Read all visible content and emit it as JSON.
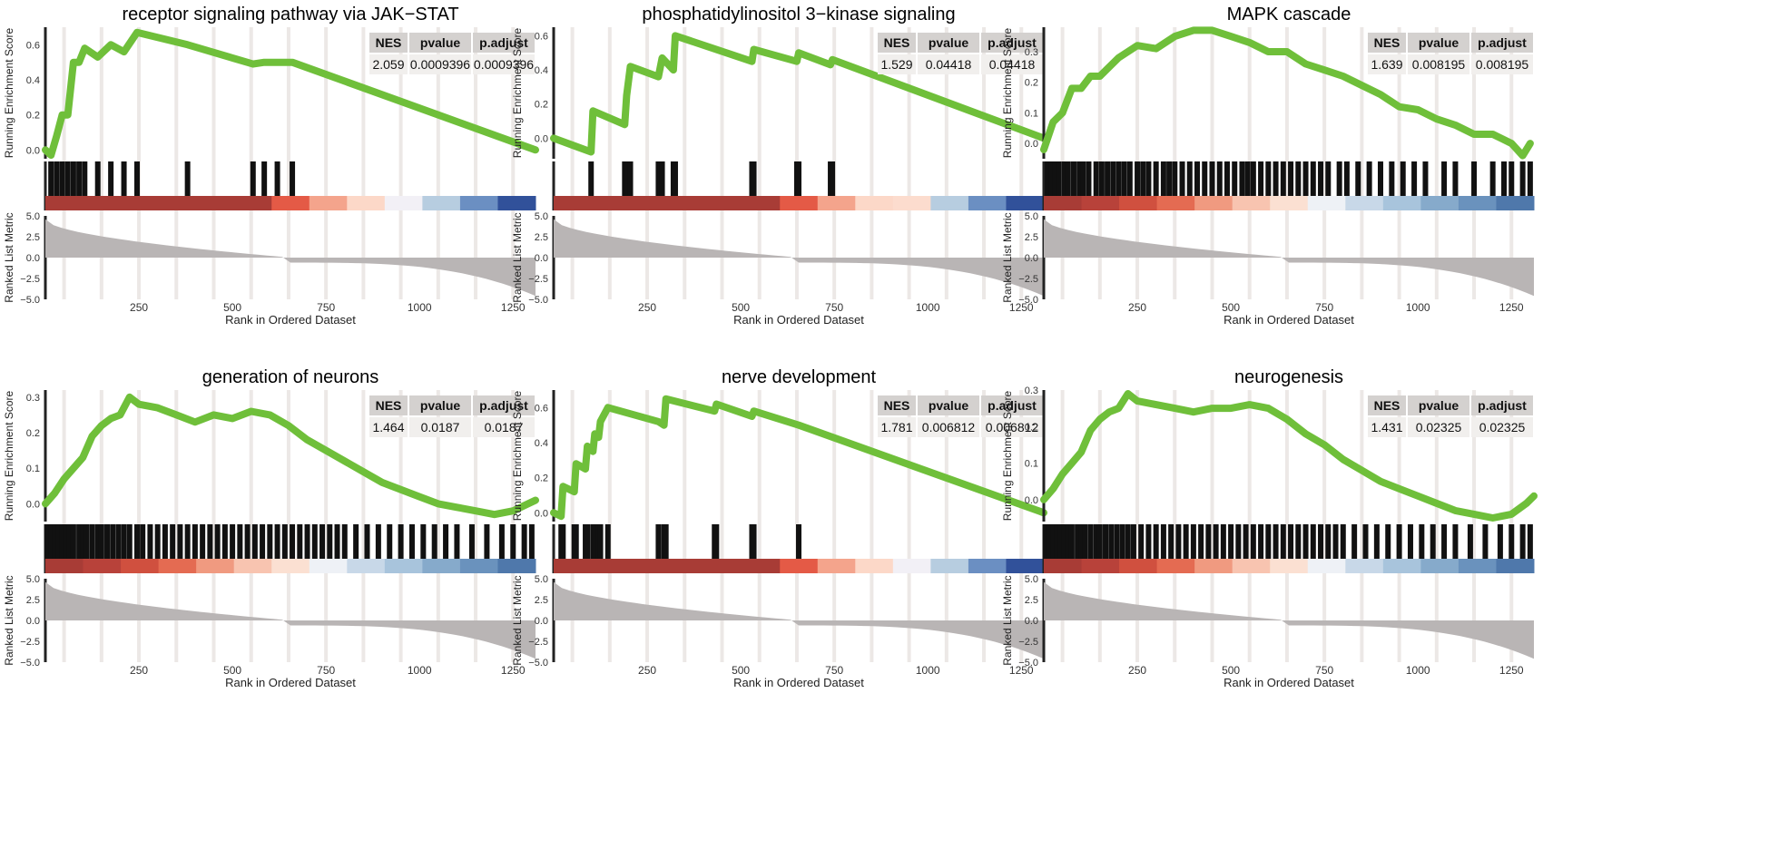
{
  "chart_data": [
    {
      "type": "line",
      "title": "receptor signaling pathway via JAK−STAT",
      "ylabel_top": "Running Enrichment Score",
      "ylabel_bottom": "Ranked List Metric",
      "xlabel": "Rank in Ordered Dataset",
      "xlim": [
        0,
        1310
      ],
      "xticks": [
        "250",
        "500",
        "750",
        "1000",
        "1250"
      ],
      "ylim": [
        -0.05,
        0.7
      ],
      "yticks": [
        "0.0",
        "0.2",
        "0.4",
        "0.6"
      ],
      "ytick_values": [
        0.0,
        0.2,
        0.4,
        0.6
      ],
      "metric_ticks": [
        "5.0",
        "2.5",
        "0.0",
        "−2.5",
        "−5.0"
      ],
      "table_headers": [
        "NES",
        "pvalue",
        "p.adjust"
      ],
      "table_values": [
        "2.059",
        "0.0009396",
        "0.0009396"
      ],
      "curve": [
        [
          0,
          0
        ],
        [
          15,
          -0.03
        ],
        [
          30,
          0.08
        ],
        [
          45,
          0.2
        ],
        [
          60,
          0.2
        ],
        [
          75,
          0.5
        ],
        [
          90,
          0.5
        ],
        [
          105,
          0.58
        ],
        [
          140,
          0.53
        ],
        [
          175,
          0.6
        ],
        [
          210,
          0.56
        ],
        [
          245,
          0.67
        ],
        [
          380,
          0.6
        ],
        [
          555,
          0.49
        ],
        [
          585,
          0.5
        ],
        [
          620,
          0.5
        ],
        [
          660,
          0.5
        ],
        [
          1310,
          0.0
        ]
      ],
      "hits": [
        15,
        30,
        45,
        60,
        75,
        90,
        105,
        140,
        175,
        210,
        245,
        380,
        555,
        585,
        620,
        660
      ],
      "heat_colors": [
        "#a83c36",
        "#a83c36",
        "#a83c36",
        "#a83c36",
        "#a83c36",
        "#a83c36",
        "#e45a46",
        "#f4a48c",
        "#fcd8c8",
        "#f2f0f6",
        "#b7cde0",
        "#6b8fc2",
        "#31519a"
      ]
    },
    {
      "type": "line",
      "title": "phosphatidylinositol 3−kinase signaling",
      "ylabel_top": "Running Enrichment Score",
      "ylabel_bottom": "Ranked List Metric",
      "xlabel": "Rank in Ordered Dataset",
      "xlim": [
        0,
        1310
      ],
      "xticks": [
        "250",
        "500",
        "750",
        "1000",
        "1250"
      ],
      "ylim": [
        -0.12,
        0.65
      ],
      "yticks": [
        "0.0",
        "0.2",
        "0.4",
        "0.6"
      ],
      "ytick_values": [
        0.0,
        0.2,
        0.4,
        0.6
      ],
      "metric_ticks": [
        "5.0",
        "2.5",
        "0.0",
        "−2.5",
        "−5.0"
      ],
      "table_headers": [
        "NES",
        "pvalue",
        "p.adjust"
      ],
      "table_values": [
        "1.529",
        "0.04418",
        "0.04418"
      ],
      "curve": [
        [
          0,
          0
        ],
        [
          100,
          -0.08
        ],
        [
          105,
          0.16
        ],
        [
          190,
          0.08
        ],
        [
          195,
          0.25
        ],
        [
          205,
          0.42
        ],
        [
          280,
          0.36
        ],
        [
          290,
          0.47
        ],
        [
          320,
          0.4
        ],
        [
          325,
          0.6
        ],
        [
          530,
          0.45
        ],
        [
          535,
          0.52
        ],
        [
          650,
          0.45
        ],
        [
          655,
          0.5
        ],
        [
          740,
          0.43
        ],
        [
          745,
          0.46
        ],
        [
          1310,
          0.0
        ]
      ],
      "hits": [
        100,
        190,
        195,
        205,
        280,
        290,
        320,
        325,
        530,
        535,
        650,
        655,
        740,
        745
      ],
      "heat_colors": [
        "#a83c36",
        "#a83c36",
        "#a83c36",
        "#a83c36",
        "#a83c36",
        "#a83c36",
        "#e45a46",
        "#f4a48c",
        "#fcd8c8",
        "#fcdcce",
        "#b7cde0",
        "#6b8fc2",
        "#31519a"
      ]
    },
    {
      "type": "line",
      "title": "MAPK cascade",
      "ylabel_top": "Running Enrichment Score",
      "ylabel_bottom": "Ranked List Metric",
      "xlabel": "Rank in Ordered Dataset",
      "xlim": [
        0,
        1310
      ],
      "xticks": [
        "250",
        "500",
        "750",
        "1000",
        "1250"
      ],
      "ylim": [
        -0.05,
        0.38
      ],
      "yticks": [
        "0.0",
        "0.1",
        "0.2",
        "0.3"
      ],
      "ytick_values": [
        0.0,
        0.1,
        0.2,
        0.3
      ],
      "metric_ticks": [
        "5.0",
        "2.5",
        "0.0",
        "−2.5",
        "−5.0"
      ],
      "table_headers": [
        "NES",
        "pvalue",
        "p.adjust"
      ],
      "table_values": [
        "1.639",
        "0.008195",
        "0.008195"
      ],
      "curve": [
        [
          0,
          -0.02
        ],
        [
          25,
          0.07
        ],
        [
          50,
          0.1
        ],
        [
          75,
          0.18
        ],
        [
          100,
          0.18
        ],
        [
          125,
          0.22
        ],
        [
          150,
          0.22
        ],
        [
          175,
          0.25
        ],
        [
          200,
          0.28
        ],
        [
          250,
          0.32
        ],
        [
          300,
          0.31
        ],
        [
          350,
          0.35
        ],
        [
          400,
          0.37
        ],
        [
          450,
          0.37
        ],
        [
          500,
          0.35
        ],
        [
          550,
          0.33
        ],
        [
          600,
          0.3
        ],
        [
          650,
          0.3
        ],
        [
          700,
          0.26
        ],
        [
          750,
          0.24
        ],
        [
          800,
          0.22
        ],
        [
          850,
          0.19
        ],
        [
          900,
          0.16
        ],
        [
          950,
          0.12
        ],
        [
          1000,
          0.11
        ],
        [
          1050,
          0.08
        ],
        [
          1100,
          0.06
        ],
        [
          1150,
          0.03
        ],
        [
          1200,
          0.03
        ],
        [
          1250,
          0.0
        ],
        [
          1280,
          -0.04
        ],
        [
          1300,
          0.0
        ]
      ],
      "hits": [
        10,
        20,
        30,
        40,
        55,
        65,
        80,
        95,
        105,
        120,
        140,
        155,
        170,
        185,
        200,
        215,
        230,
        250,
        265,
        280,
        300,
        320,
        335,
        350,
        370,
        390,
        410,
        430,
        450,
        470,
        490,
        510,
        530,
        545,
        560,
        580,
        600,
        620,
        640,
        660,
        680,
        700,
        720,
        740,
        760,
        790,
        810,
        840,
        870,
        900,
        930,
        960,
        990,
        1020,
        1070,
        1100,
        1150,
        1200,
        1230,
        1250,
        1280,
        1300
      ],
      "heat_colors": [
        "#a83c36",
        "#b8423a",
        "#d0503f",
        "#e46b52",
        "#f09a80",
        "#f8c4b0",
        "#fbe0d2",
        "#eef1f6",
        "#c8d8e8",
        "#a8c4dc",
        "#86aacb",
        "#6a92bd",
        "#4f78ab"
      ]
    },
    {
      "type": "line",
      "title": "generation of neurons",
      "ylabel_top": "Running Enrichment Score",
      "ylabel_bottom": "Ranked List Metric",
      "xlabel": "Rank in Ordered Dataset",
      "xlim": [
        0,
        1310
      ],
      "xticks": [
        "250",
        "500",
        "750",
        "1000",
        "1250"
      ],
      "ylim": [
        -0.05,
        0.32
      ],
      "yticks": [
        "0.0",
        "0.1",
        "0.2",
        "0.3"
      ],
      "ytick_values": [
        0.0,
        0.1,
        0.2,
        0.3
      ],
      "metric_ticks": [
        "5.0",
        "2.5",
        "0.0",
        "−2.5",
        "−5.0"
      ],
      "table_headers": [
        "NES",
        "pvalue",
        "p.adjust"
      ],
      "table_values": [
        "1.464",
        "0.0187",
        "0.0187"
      ],
      "curve": [
        [
          0,
          0.0
        ],
        [
          25,
          0.03
        ],
        [
          50,
          0.07
        ],
        [
          75,
          0.1
        ],
        [
          100,
          0.13
        ],
        [
          125,
          0.19
        ],
        [
          150,
          0.22
        ],
        [
          175,
          0.24
        ],
        [
          200,
          0.25
        ],
        [
          225,
          0.3
        ],
        [
          250,
          0.28
        ],
        [
          300,
          0.27
        ],
        [
          350,
          0.25
        ],
        [
          400,
          0.23
        ],
        [
          450,
          0.25
        ],
        [
          500,
          0.24
        ],
        [
          550,
          0.26
        ],
        [
          600,
          0.25
        ],
        [
          650,
          0.22
        ],
        [
          700,
          0.18
        ],
        [
          750,
          0.15
        ],
        [
          800,
          0.12
        ],
        [
          850,
          0.09
        ],
        [
          900,
          0.06
        ],
        [
          950,
          0.04
        ],
        [
          1000,
          0.02
        ],
        [
          1050,
          0.0
        ],
        [
          1100,
          -0.01
        ],
        [
          1150,
          -0.02
        ],
        [
          1200,
          -0.03
        ],
        [
          1250,
          -0.02
        ],
        [
          1290,
          0.0
        ],
        [
          1310,
          0.01
        ]
      ],
      "hits": [
        5,
        15,
        25,
        35,
        45,
        55,
        65,
        75,
        90,
        100,
        110,
        125,
        140,
        150,
        165,
        180,
        195,
        210,
        225,
        245,
        260,
        280,
        300,
        320,
        340,
        360,
        380,
        400,
        420,
        440,
        460,
        480,
        500,
        520,
        540,
        560,
        580,
        600,
        620,
        640,
        660,
        680,
        700,
        720,
        740,
        760,
        780,
        800,
        830,
        860,
        890,
        920,
        950,
        980,
        1010,
        1040,
        1070,
        1100,
        1140,
        1180,
        1220,
        1250,
        1280,
        1300
      ],
      "heat_colors": [
        "#a83c36",
        "#b8423a",
        "#d0503f",
        "#e46b52",
        "#f09a80",
        "#f8c4b0",
        "#fbe0d2",
        "#eef1f6",
        "#c8d8e8",
        "#a8c4dc",
        "#86aacb",
        "#6a92bd",
        "#4f78ab"
      ]
    },
    {
      "type": "line",
      "title": "nerve development",
      "ylabel_top": "Running Enrichment Score",
      "ylabel_bottom": "Ranked List Metric",
      "xlabel": "Rank in Ordered Dataset",
      "xlim": [
        0,
        1310
      ],
      "xticks": [
        "250",
        "500",
        "750",
        "1000",
        "1250"
      ],
      "ylim": [
        -0.05,
        0.7
      ],
      "yticks": [
        "0.0",
        "0.2",
        "0.4",
        "0.6"
      ],
      "ytick_values": [
        0.0,
        0.2,
        0.4,
        0.6
      ],
      "metric_ticks": [
        "5.0",
        "2.5",
        "0.0",
        "−2.5",
        "−5.0"
      ],
      "table_headers": [
        "NES",
        "pvalue",
        "p.adjust"
      ],
      "table_values": [
        "1.781",
        "0.006812",
        "0.006812"
      ],
      "curve": [
        [
          0,
          0
        ],
        [
          20,
          -0.02
        ],
        [
          25,
          0.15
        ],
        [
          55,
          0.12
        ],
        [
          60,
          0.28
        ],
        [
          85,
          0.25
        ],
        [
          90,
          0.38
        ],
        [
          105,
          0.35
        ],
        [
          110,
          0.45
        ],
        [
          120,
          0.43
        ],
        [
          125,
          0.52
        ],
        [
          145,
          0.6
        ],
        [
          280,
          0.52
        ],
        [
          295,
          0.5
        ],
        [
          300,
          0.65
        ],
        [
          430,
          0.58
        ],
        [
          435,
          0.62
        ],
        [
          530,
          0.55
        ],
        [
          535,
          0.58
        ],
        [
          655,
          0.5
        ],
        [
          1310,
          0.0
        ]
      ],
      "hits": [
        20,
        25,
        55,
        60,
        85,
        90,
        105,
        110,
        120,
        125,
        145,
        280,
        295,
        300,
        430,
        435,
        530,
        535,
        655
      ],
      "heat_colors": [
        "#a83c36",
        "#a83c36",
        "#a83c36",
        "#a83c36",
        "#a83c36",
        "#a83c36",
        "#e45a46",
        "#f4a48c",
        "#fcd8c8",
        "#f2f0f6",
        "#b7cde0",
        "#6b8fc2",
        "#31519a"
      ]
    },
    {
      "type": "line",
      "title": "neurogenesis",
      "ylabel_top": "Running Enrichment Score",
      "ylabel_bottom": "Ranked List Metric",
      "xlabel": "Rank in Ordered Dataset",
      "xlim": [
        0,
        1310
      ],
      "xticks": [
        "250",
        "500",
        "750",
        "1000",
        "1250"
      ],
      "ylim": [
        -0.06,
        0.3
      ],
      "yticks": [
        "0.0",
        "0.1",
        "0.2",
        "0.3"
      ],
      "ytick_values": [
        0.0,
        0.1,
        0.2,
        0.3
      ],
      "metric_ticks": [
        "5.0",
        "2.5",
        "0.0",
        "−2.5",
        "−5.0"
      ],
      "table_headers": [
        "NES",
        "pvalue",
        "p.adjust"
      ],
      "table_values": [
        "1.431",
        "0.02325",
        "0.02325"
      ],
      "curve": [
        [
          0,
          0.0
        ],
        [
          25,
          0.03
        ],
        [
          50,
          0.07
        ],
        [
          75,
          0.1
        ],
        [
          100,
          0.13
        ],
        [
          125,
          0.19
        ],
        [
          150,
          0.22
        ],
        [
          175,
          0.24
        ],
        [
          200,
          0.25
        ],
        [
          225,
          0.29
        ],
        [
          250,
          0.27
        ],
        [
          300,
          0.26
        ],
        [
          350,
          0.25
        ],
        [
          400,
          0.24
        ],
        [
          450,
          0.25
        ],
        [
          500,
          0.25
        ],
        [
          550,
          0.26
        ],
        [
          600,
          0.25
        ],
        [
          650,
          0.22
        ],
        [
          700,
          0.18
        ],
        [
          750,
          0.15
        ],
        [
          800,
          0.11
        ],
        [
          850,
          0.08
        ],
        [
          900,
          0.05
        ],
        [
          950,
          0.03
        ],
        [
          1000,
          0.01
        ],
        [
          1050,
          -0.01
        ],
        [
          1100,
          -0.03
        ],
        [
          1150,
          -0.04
        ],
        [
          1200,
          -0.05
        ],
        [
          1250,
          -0.04
        ],
        [
          1290,
          -0.01
        ],
        [
          1310,
          0.01
        ]
      ],
      "hits": [
        5,
        15,
        25,
        35,
        45,
        55,
        65,
        75,
        90,
        100,
        110,
        125,
        140,
        150,
        165,
        180,
        195,
        210,
        225,
        240,
        260,
        280,
        300,
        320,
        340,
        360,
        380,
        400,
        420,
        440,
        460,
        480,
        500,
        520,
        540,
        560,
        580,
        600,
        620,
        640,
        660,
        680,
        700,
        720,
        740,
        760,
        780,
        800,
        830,
        860,
        890,
        920,
        950,
        980,
        1010,
        1040,
        1070,
        1100,
        1140,
        1180,
        1220,
        1250,
        1280,
        1300
      ],
      "heat_colors": [
        "#a83c36",
        "#b8423a",
        "#d0503f",
        "#e46b52",
        "#f09a80",
        "#f8c4b0",
        "#fbe0d2",
        "#eef1f6",
        "#c8d8e8",
        "#a8c4dc",
        "#86aacb",
        "#6a92bd",
        "#4f78ab"
      ]
    }
  ],
  "colors": {
    "curve": "#6fbf3a",
    "hit": "#111111",
    "metric_fill": "#b9b5b5",
    "grid_band": "#ece8e6",
    "table_header_bg": "#d4d1cf",
    "table_value_bg": "#f1efed"
  }
}
